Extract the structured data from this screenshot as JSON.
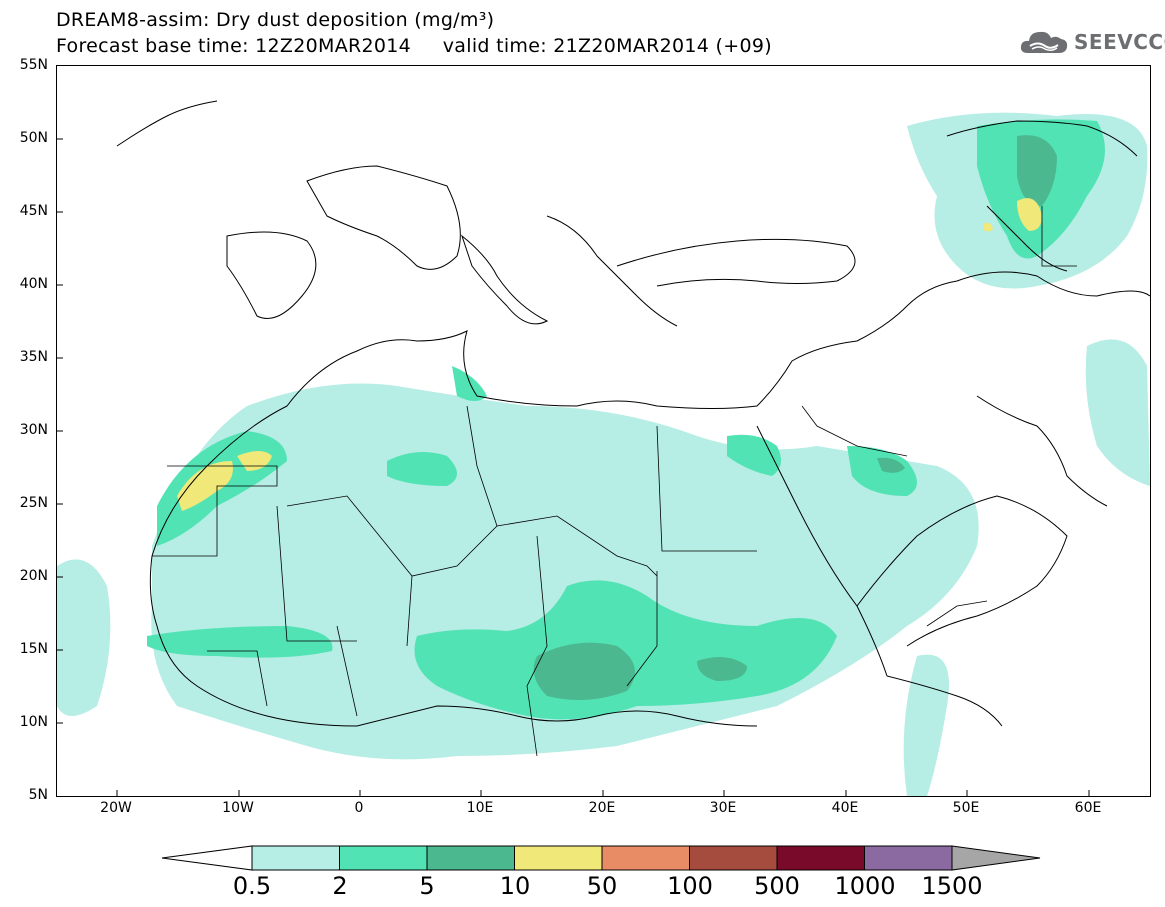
{
  "title": {
    "line1": "DREAM8-assim: Dry dust deposition (mg/m³)",
    "line2": "Forecast base time: 12Z20MAR2014     valid time: 21Z20MAR2014 (+09)"
  },
  "logo": {
    "text": "SEEVCCC",
    "icon": "cloud-icon"
  },
  "map": {
    "lat_labels": [
      "55N",
      "50N",
      "45N",
      "40N",
      "35N",
      "30N",
      "25N",
      "20N",
      "15N",
      "10N",
      "5N"
    ],
    "lon_labels": [
      "20W",
      "10W",
      "0",
      "10E",
      "20E",
      "30E",
      "40E",
      "50E",
      "60E"
    ],
    "lat_range": [
      5,
      55
    ],
    "lon_range": [
      -25,
      65
    ]
  },
  "colorbar": {
    "labels": [
      "0.5",
      "2",
      "5",
      "10",
      "50",
      "100",
      "500",
      "1000",
      "1500"
    ],
    "colors": [
      "#b6ede5",
      "#52e3b5",
      "#4cb88f",
      "#f0e878",
      "#e88c66",
      "#a64c3e",
      "#7a0a2a",
      "#8a6aa0",
      "#a6a6a6"
    ]
  }
}
